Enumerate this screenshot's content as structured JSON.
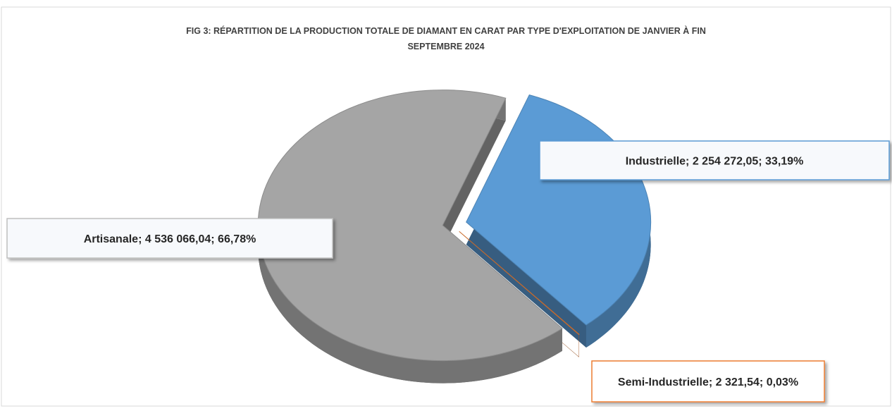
{
  "chart_data": {
    "type": "pie",
    "title": "FIG 3: RÉPARTITION DE LA PRODUCTION TOTALE DE DIAMANT EN CARAT PAR TYPE D'EXPLOITATION DE JANVIER À FIN",
    "title_line2": "SEPTEMBRE 2024",
    "categories": [
      "Industrielle",
      "Semi-Industrielle",
      "Artisanale"
    ],
    "values": [
      2254272.05,
      2321.54,
      4536066.04
    ],
    "value_labels": [
      "2 254 272,05",
      "2 321,54",
      "4 536 066,04"
    ],
    "percentages": [
      33.19,
      0.03,
      66.78
    ],
    "percentage_labels": [
      "33,19%",
      "0,03%",
      "66,78%"
    ],
    "label_separator": "; ",
    "colors": [
      "#5b9bd5",
      "#ed7d31",
      "#a5a5a5"
    ]
  }
}
